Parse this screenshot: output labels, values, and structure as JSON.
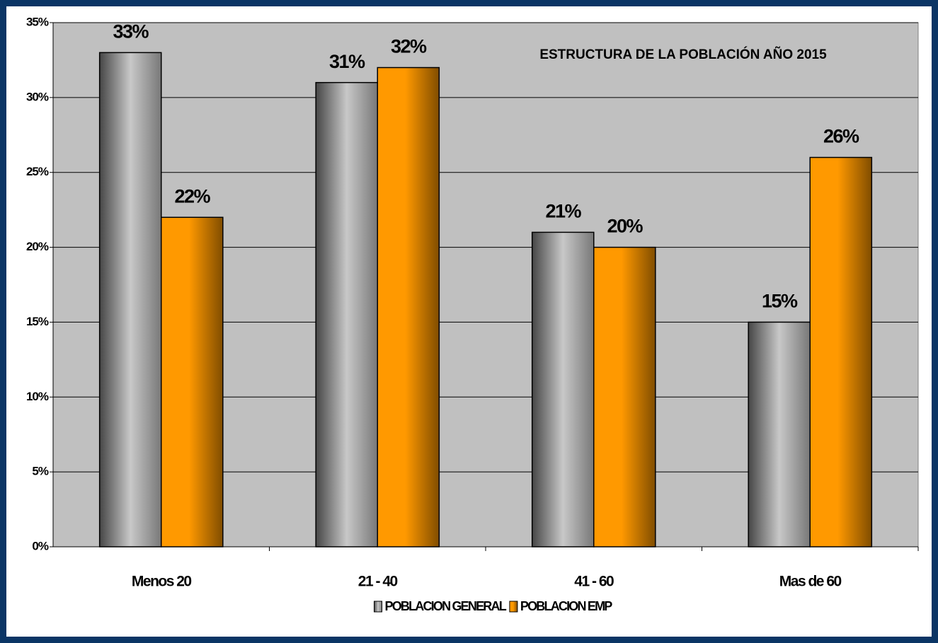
{
  "chart_data": {
    "type": "bar",
    "title": "ESTRUCTURA DE LA POBLACIÓN AÑO 2015",
    "categories": [
      "Menos 20",
      "21 - 40",
      "41 - 60",
      "Mas de 60"
    ],
    "series": [
      {
        "name": "POBLACION GENERAL",
        "color": "#c8c8c8",
        "values": [
          33,
          31,
          21,
          15
        ],
        "value_labels": [
          "33%",
          "31%",
          "21%",
          "15%"
        ]
      },
      {
        "name": "POBLACION EMP",
        "color": "#ff9900",
        "values": [
          22,
          32,
          20,
          26
        ],
        "value_labels": [
          "22%",
          "32%",
          "20%",
          "26%"
        ]
      }
    ],
    "ylim": [
      0,
      35
    ],
    "yticks": [
      {
        "value": 0,
        "label": "0%"
      },
      {
        "value": 5,
        "label": "5%"
      },
      {
        "value": 10,
        "label": "10%"
      },
      {
        "value": 15,
        "label": "15%"
      },
      {
        "value": 20,
        "label": "20%"
      },
      {
        "value": 25,
        "label": "25%"
      },
      {
        "value": 30,
        "label": "30%"
      },
      {
        "value": 35,
        "label": "35%"
      }
    ],
    "grid": true,
    "legend": "bottom"
  }
}
